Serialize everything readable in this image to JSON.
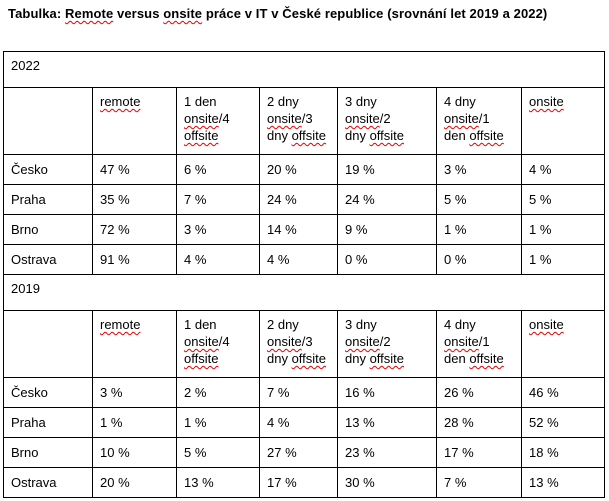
{
  "title": {
    "text": "Tabulka: Remote versus onsite práce v IT v České republice (srovnání let 2019 a 2022)"
  },
  "spellcheck": {
    "misspelled_words": [
      "Remote",
      "remote",
      "onsite",
      "offsite"
    ],
    "underline_color": "#e60000"
  },
  "table": {
    "column_headers": [
      {
        "label": "",
        "lines": []
      },
      {
        "label": "remote",
        "lines": [
          "remote"
        ]
      },
      {
        "label": "1 den onsite/4 offsite",
        "lines": [
          "1 den",
          "onsite/4",
          "offsite"
        ]
      },
      {
        "label": "2 dny onsite/3 dny offsite",
        "lines": [
          "2 dny",
          "onsite/3",
          "dny offsite"
        ]
      },
      {
        "label": "3 dny onsite/2 dny offsite",
        "lines": [
          "3 dny",
          "onsite/2",
          "dny offsite"
        ]
      },
      {
        "label": "4 dny onsite/1 den offsite",
        "lines": [
          "4 dny",
          "onsite/1",
          "den offsite"
        ]
      },
      {
        "label": "onsite",
        "lines": [
          "onsite"
        ]
      }
    ],
    "sections": [
      {
        "year": "2022",
        "rows": [
          {
            "label": "Česko",
            "values": [
              "47 %",
              "6 %",
              "20 %",
              "19 %",
              "3 %",
              "4 %"
            ]
          },
          {
            "label": "Praha",
            "values": [
              "35 %",
              "7 %",
              "24 %",
              "24 %",
              "5 %",
              "5 %"
            ]
          },
          {
            "label": "Brno",
            "values": [
              "72 %",
              "3 %",
              "14 %",
              "9 %",
              "1 %",
              "1 %"
            ]
          },
          {
            "label": "Ostrava",
            "values": [
              "91 %",
              "4 %",
              "4 %",
              "0 %",
              "0 %",
              "1 %"
            ]
          }
        ]
      },
      {
        "year": "2019",
        "rows": [
          {
            "label": "Česko",
            "values": [
              "3 %",
              "2 %",
              "7 %",
              "16 %",
              "26 %",
              "46 %"
            ]
          },
          {
            "label": "Praha",
            "values": [
              "1 %",
              "1 %",
              "4 %",
              "13 %",
              "28 %",
              "52 %"
            ]
          },
          {
            "label": "Brno",
            "values": [
              "10 %",
              "5 %",
              "27 %",
              "23 %",
              "17 %",
              "18 %"
            ]
          },
          {
            "label": "Ostrava",
            "values": [
              "20 %",
              "13 %",
              "17 %",
              "30 %",
              "7 %",
              "13 %"
            ]
          }
        ]
      }
    ]
  },
  "colors": {
    "background": "#ffffff",
    "text": "#000000",
    "border": "#000000",
    "spellcheck_red": "#e60000"
  }
}
